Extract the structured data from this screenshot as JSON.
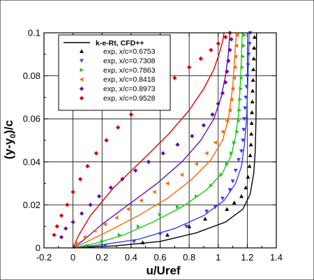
{
  "chart_data": {
    "type": "line",
    "xlabel": "u/Uref",
    "ylabel": "(y-y0)/c",
    "ylabel_main": "(y-y",
    "ylabel_sub": "0",
    "ylabel_tail": ")/c",
    "xlim": [
      -0.2,
      1.4
    ],
    "ylim": [
      0,
      0.1
    ],
    "x_ticks": [
      -0.2,
      0,
      0.2,
      0.4,
      0.6,
      0.8,
      1,
      1.2,
      1.4
    ],
    "x_tick_labels": [
      "-0.2",
      "0",
      "0.2",
      "0.4",
      "0.6",
      "0.8",
      "1",
      "1.2",
      "1.4"
    ],
    "y_ticks": [
      0,
      0.02,
      0.04,
      0.06,
      0.08,
      0.1
    ],
    "y_tick_labels": [
      "0",
      "0.02",
      "0.04",
      "0.06",
      "0.08",
      "0.1"
    ],
    "grid": true,
    "legend_position": "top-left",
    "legend": {
      "line_label": "k-e-Rt, CFD++",
      "entries": [
        "exp, x/c=0.6753",
        "exp, x/c=0.7308",
        "exp, x/c=0.7863",
        "exp, x/c=0.8418",
        "exp, x/c=0.8973",
        "exp, x/c=0.9528"
      ]
    },
    "series": [
      {
        "name": "x/c=0.6753",
        "color": "#000000",
        "marker": "triangle-up",
        "cfd": [
          [
            0,
            0
          ],
          [
            0.3,
            0.001
          ],
          [
            0.6,
            0.003
          ],
          [
            0.85,
            0.007
          ],
          [
            1.05,
            0.012
          ],
          [
            1.17,
            0.018
          ],
          [
            1.22,
            0.025
          ],
          [
            1.245,
            0.035
          ],
          [
            1.255,
            0.045
          ],
          [
            1.26,
            0.06
          ],
          [
            1.262,
            0.08
          ],
          [
            1.264,
            0.1
          ]
        ],
        "exp": [
          [
            0.48,
            0.0025
          ],
          [
            0.65,
            0.006
          ],
          [
            0.8,
            0.01
          ],
          [
            0.91,
            0.0135
          ],
          [
            1.06,
            0.018
          ],
          [
            1.11,
            0.021
          ],
          [
            1.16,
            0.024
          ],
          [
            1.19,
            0.028
          ],
          [
            1.205,
            0.033
          ],
          [
            1.215,
            0.038
          ],
          [
            1.22,
            0.043
          ],
          [
            1.225,
            0.048
          ],
          [
            1.228,
            0.053
          ],
          [
            1.23,
            0.058
          ],
          [
            1.232,
            0.063
          ],
          [
            1.235,
            0.068
          ],
          [
            1.237,
            0.073
          ],
          [
            1.24,
            0.078
          ],
          [
            1.242,
            0.083
          ],
          [
            1.245,
            0.088
          ],
          [
            1.247,
            0.093
          ],
          [
            1.25,
            0.098
          ]
        ]
      },
      {
        "name": "x/c=0.7308",
        "color": "#3b3bf5",
        "marker": "triangle-down",
        "cfd": [
          [
            0,
            0
          ],
          [
            0.2,
            0.0015
          ],
          [
            0.45,
            0.004
          ],
          [
            0.7,
            0.009
          ],
          [
            0.9,
            0.015
          ],
          [
            1.04,
            0.022
          ],
          [
            1.12,
            0.03
          ],
          [
            1.16,
            0.038
          ],
          [
            1.18,
            0.048
          ],
          [
            1.195,
            0.06
          ],
          [
            1.205,
            0.08
          ],
          [
            1.212,
            0.1
          ]
        ],
        "exp": [
          [
            0.22,
            0.001
          ],
          [
            0.42,
            0.003
          ],
          [
            0.6,
            0.0065
          ],
          [
            0.78,
            0.01
          ],
          [
            0.92,
            0.017
          ],
          [
            0.98,
            0.019
          ],
          [
            1.03,
            0.023
          ],
          [
            1.08,
            0.027
          ],
          [
            1.1,
            0.031
          ],
          [
            1.12,
            0.036
          ],
          [
            1.14,
            0.041
          ],
          [
            1.16,
            0.045
          ],
          [
            1.17,
            0.05
          ],
          [
            1.175,
            0.055
          ],
          [
            1.18,
            0.06
          ],
          [
            1.185,
            0.065
          ],
          [
            1.19,
            0.07
          ],
          [
            1.195,
            0.075
          ],
          [
            1.2,
            0.08
          ],
          [
            1.205,
            0.085
          ],
          [
            1.21,
            0.09
          ],
          [
            1.215,
            0.095
          ],
          [
            1.22,
            0.1
          ]
        ]
      },
      {
        "name": "x/c=0.7863",
        "color": "#1ec81e",
        "marker": "triangle-right",
        "cfd": [
          [
            0,
            0
          ],
          [
            0.15,
            0.002
          ],
          [
            0.35,
            0.006
          ],
          [
            0.55,
            0.012
          ],
          [
            0.75,
            0.019
          ],
          [
            0.92,
            0.027
          ],
          [
            1.03,
            0.035
          ],
          [
            1.09,
            0.043
          ],
          [
            1.12,
            0.052
          ],
          [
            1.14,
            0.062
          ],
          [
            1.155,
            0.08
          ],
          [
            1.165,
            0.1
          ]
        ],
        "exp": [
          [
            0.1,
            0.001
          ],
          [
            0.2,
            0.003
          ],
          [
            0.32,
            0.006
          ],
          [
            0.45,
            0.01
          ],
          [
            0.6,
            0.0155
          ],
          [
            0.72,
            0.019
          ],
          [
            0.85,
            0.024
          ],
          [
            0.95,
            0.029
          ],
          [
            1.02,
            0.034
          ],
          [
            1.06,
            0.039
          ],
          [
            1.09,
            0.044
          ],
          [
            1.11,
            0.049
          ],
          [
            1.13,
            0.054
          ],
          [
            1.14,
            0.059
          ],
          [
            1.145,
            0.064
          ],
          [
            1.15,
            0.069
          ],
          [
            1.155,
            0.074
          ],
          [
            1.16,
            0.079
          ],
          [
            1.165,
            0.084
          ],
          [
            1.17,
            0.089
          ],
          [
            1.175,
            0.094
          ],
          [
            1.18,
            0.099
          ]
        ]
      },
      {
        "name": "x/c=0.8418",
        "color": "#ff6600",
        "marker": "triangle-left",
        "cfd": [
          [
            0,
            0
          ],
          [
            0.1,
            0.003
          ],
          [
            0.25,
            0.008
          ],
          [
            0.45,
            0.015
          ],
          [
            0.65,
            0.023
          ],
          [
            0.82,
            0.032
          ],
          [
            0.95,
            0.041
          ],
          [
            1.03,
            0.05
          ],
          [
            1.07,
            0.06
          ],
          [
            1.1,
            0.075
          ],
          [
            1.115,
            0.09
          ],
          [
            1.125,
            0.1
          ]
        ],
        "exp": [
          [
            0.02,
            0.002
          ],
          [
            0.08,
            0.005
          ],
          [
            0.15,
            0.008
          ],
          [
            0.22,
            0.011
          ],
          [
            0.3,
            0.014
          ],
          [
            0.38,
            0.018
          ],
          [
            0.47,
            0.022
          ],
          [
            0.56,
            0.026
          ],
          [
            0.65,
            0.03
          ],
          [
            0.75,
            0.034
          ],
          [
            0.85,
            0.039
          ],
          [
            0.92,
            0.044
          ],
          [
            0.98,
            0.049
          ],
          [
            1.03,
            0.054
          ],
          [
            1.06,
            0.059
          ],
          [
            1.08,
            0.064
          ],
          [
            1.09,
            0.069
          ],
          [
            1.1,
            0.074
          ],
          [
            1.11,
            0.079
          ],
          [
            1.115,
            0.084
          ],
          [
            1.12,
            0.089
          ],
          [
            1.125,
            0.094
          ],
          [
            1.13,
            0.099
          ]
        ]
      },
      {
        "name": "x/c=0.8973",
        "color": "#6a0dad",
        "marker": "diamond",
        "cfd": [
          [
            0,
            0
          ],
          [
            0.08,
            0.004
          ],
          [
            0.2,
            0.011
          ],
          [
            0.38,
            0.02
          ],
          [
            0.58,
            0.03
          ],
          [
            0.75,
            0.04
          ],
          [
            0.88,
            0.05
          ],
          [
            0.97,
            0.06
          ],
          [
            1.02,
            0.07
          ],
          [
            1.05,
            0.08
          ],
          [
            1.07,
            0.09
          ],
          [
            1.08,
            0.1
          ]
        ],
        "exp": [
          [
            -0.08,
            0.005
          ],
          [
            -0.05,
            0.009
          ],
          [
            0,
            0.012
          ],
          [
            0.06,
            0.016
          ],
          [
            0.12,
            0.02
          ],
          [
            0.18,
            0.024
          ],
          [
            0.26,
            0.028
          ],
          [
            0.34,
            0.032
          ],
          [
            0.43,
            0.036
          ],
          [
            0.52,
            0.04
          ],
          [
            0.62,
            0.044
          ],
          [
            0.72,
            0.048
          ],
          [
            0.82,
            0.052
          ],
          [
            0.9,
            0.057
          ],
          [
            0.96,
            0.062
          ],
          [
            1.0,
            0.067
          ],
          [
            1.03,
            0.072
          ],
          [
            1.05,
            0.077
          ],
          [
            1.06,
            0.082
          ],
          [
            1.07,
            0.087
          ],
          [
            1.08,
            0.092
          ],
          [
            1.09,
            0.097
          ]
        ]
      },
      {
        "name": "x/c=0.9528",
        "color": "#dd0000",
        "marker": "diamond",
        "cfd": [
          [
            0,
            0
          ],
          [
            0.04,
            0.006
          ],
          [
            0.12,
            0.015
          ],
          [
            0.28,
            0.028
          ],
          [
            0.48,
            0.041
          ],
          [
            0.66,
            0.053
          ],
          [
            0.8,
            0.064
          ],
          [
            0.9,
            0.074
          ],
          [
            0.97,
            0.083
          ],
          [
            1.01,
            0.091
          ],
          [
            1.03,
            0.096
          ],
          [
            1.04,
            0.1
          ]
        ],
        "exp": [
          [
            -0.13,
            0.006
          ],
          [
            -0.11,
            0.01
          ],
          [
            -0.08,
            0.015
          ],
          [
            -0.04,
            0.02
          ],
          [
            0.0,
            0.026
          ],
          [
            0.05,
            0.032
          ],
          [
            0.1,
            0.038
          ],
          [
            0.16,
            0.044
          ],
          [
            0.23,
            0.05
          ],
          [
            0.31,
            0.056
          ],
          [
            0.4,
            0.062
          ],
          [
            0.5,
            0.068
          ],
          [
            0.6,
            0.074
          ],
          [
            0.7,
            0.079
          ],
          [
            0.8,
            0.084
          ],
          [
            0.88,
            0.088
          ],
          [
            0.95,
            0.092
          ],
          [
            1.0,
            0.095
          ],
          [
            1.05,
            0.098
          ],
          [
            1.08,
            0.1
          ]
        ]
      }
    ]
  }
}
